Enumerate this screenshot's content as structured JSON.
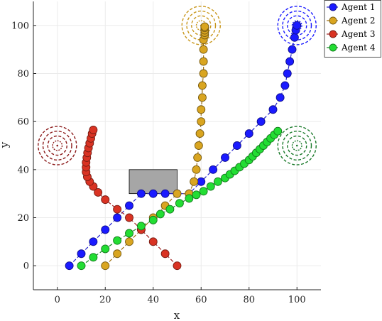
{
  "chart_data": {
    "type": "scatter",
    "xlabel": "x",
    "ylabel": "y",
    "xlim": [
      -10,
      110
    ],
    "ylim": [
      -10,
      110
    ],
    "xticks": [
      0,
      20,
      40,
      60,
      80,
      100
    ],
    "yticks": [
      0,
      20,
      40,
      60,
      80,
      100
    ],
    "grid": true,
    "legend_position": "top-right",
    "obstacle": {
      "x": [
        30,
        50
      ],
      "y": [
        30,
        40
      ],
      "color": "#a6a6a6"
    },
    "series": [
      {
        "name": "Agent 1",
        "color": "#1a1aff",
        "line_color": "#2020cc",
        "x": [
          5,
          10,
          15,
          20,
          25,
          30,
          35,
          40,
          45,
          50,
          55,
          60,
          65,
          70,
          75,
          80,
          85,
          90,
          93,
          95,
          96,
          97,
          98,
          99,
          99.5,
          100
        ],
        "y": [
          0,
          5,
          10,
          15,
          20,
          25,
          30,
          30,
          30,
          30,
          30,
          35,
          40,
          45,
          50,
          55,
          60,
          65,
          70,
          75,
          80,
          85,
          90,
          95,
          98,
          100
        ]
      },
      {
        "name": "Agent 2",
        "color": "#d9a520",
        "line_color": "#a07010",
        "x": [
          20,
          25,
          30,
          35,
          40,
          45,
          50,
          55,
          57,
          58,
          58.5,
          59,
          59.5,
          60,
          60,
          60.5,
          60.5,
          61,
          61,
          61,
          61,
          61.5,
          61.5,
          61.5,
          61.5,
          61.5
        ],
        "y": [
          0,
          5,
          10,
          15,
          20,
          25,
          30,
          30,
          35,
          40,
          45,
          50,
          55,
          60,
          65,
          70,
          75,
          80,
          85,
          90,
          94,
          96,
          97,
          98,
          99,
          99.5
        ]
      },
      {
        "name": "Agent 3",
        "color": "#d93323",
        "line_color": "#a02020",
        "x": [
          50,
          45,
          40,
          35,
          30,
          25,
          20,
          17,
          15,
          13.5,
          12.5,
          12,
          12,
          12,
          12.3,
          12.6,
          13,
          13.5,
          14,
          14.5,
          15
        ],
        "y": [
          0,
          5,
          10,
          15,
          20,
          23.5,
          27.5,
          30.5,
          33,
          35,
          37,
          39,
          41,
          43,
          45,
          47,
          49,
          51,
          53,
          55,
          56.5
        ]
      },
      {
        "name": "Agent 4",
        "color": "#22dd33",
        "line_color": "#158a22",
        "x": [
          10,
          15,
          20,
          25,
          30,
          35,
          40,
          43,
          47,
          51,
          55,
          58,
          61,
          64,
          67,
          70,
          72,
          74,
          76,
          78,
          80,
          81.5,
          83,
          84.5,
          86,
          87.5,
          89,
          90.5,
          92
        ],
        "y": [
          0,
          3.5,
          7,
          10.5,
          13.5,
          16.5,
          19,
          21.5,
          23.5,
          26,
          28,
          29.5,
          31,
          33,
          35,
          36.5,
          38,
          39.5,
          41,
          42.5,
          44,
          45.5,
          47,
          48.5,
          50,
          51.5,
          53,
          54.5,
          56
        ]
      }
    ],
    "target_rings": [
      {
        "agent": "Agent 1",
        "center": [
          100,
          100
        ],
        "color": "#1a1aff",
        "radii": [
          2,
          4,
          6,
          8
        ]
      },
      {
        "agent": "Agent 2",
        "center": [
          60,
          100
        ],
        "color": "#c8961a",
        "radii": [
          2,
          4,
          6,
          8
        ]
      },
      {
        "agent": "Agent 3",
        "center": [
          0,
          50
        ],
        "color": "#8b1a1a",
        "radii": [
          2,
          4,
          6,
          8
        ]
      },
      {
        "agent": "Agent 4",
        "center": [
          100,
          50
        ],
        "color": "#1a7a2a",
        "radii": [
          2,
          4,
          6,
          8
        ]
      }
    ]
  }
}
